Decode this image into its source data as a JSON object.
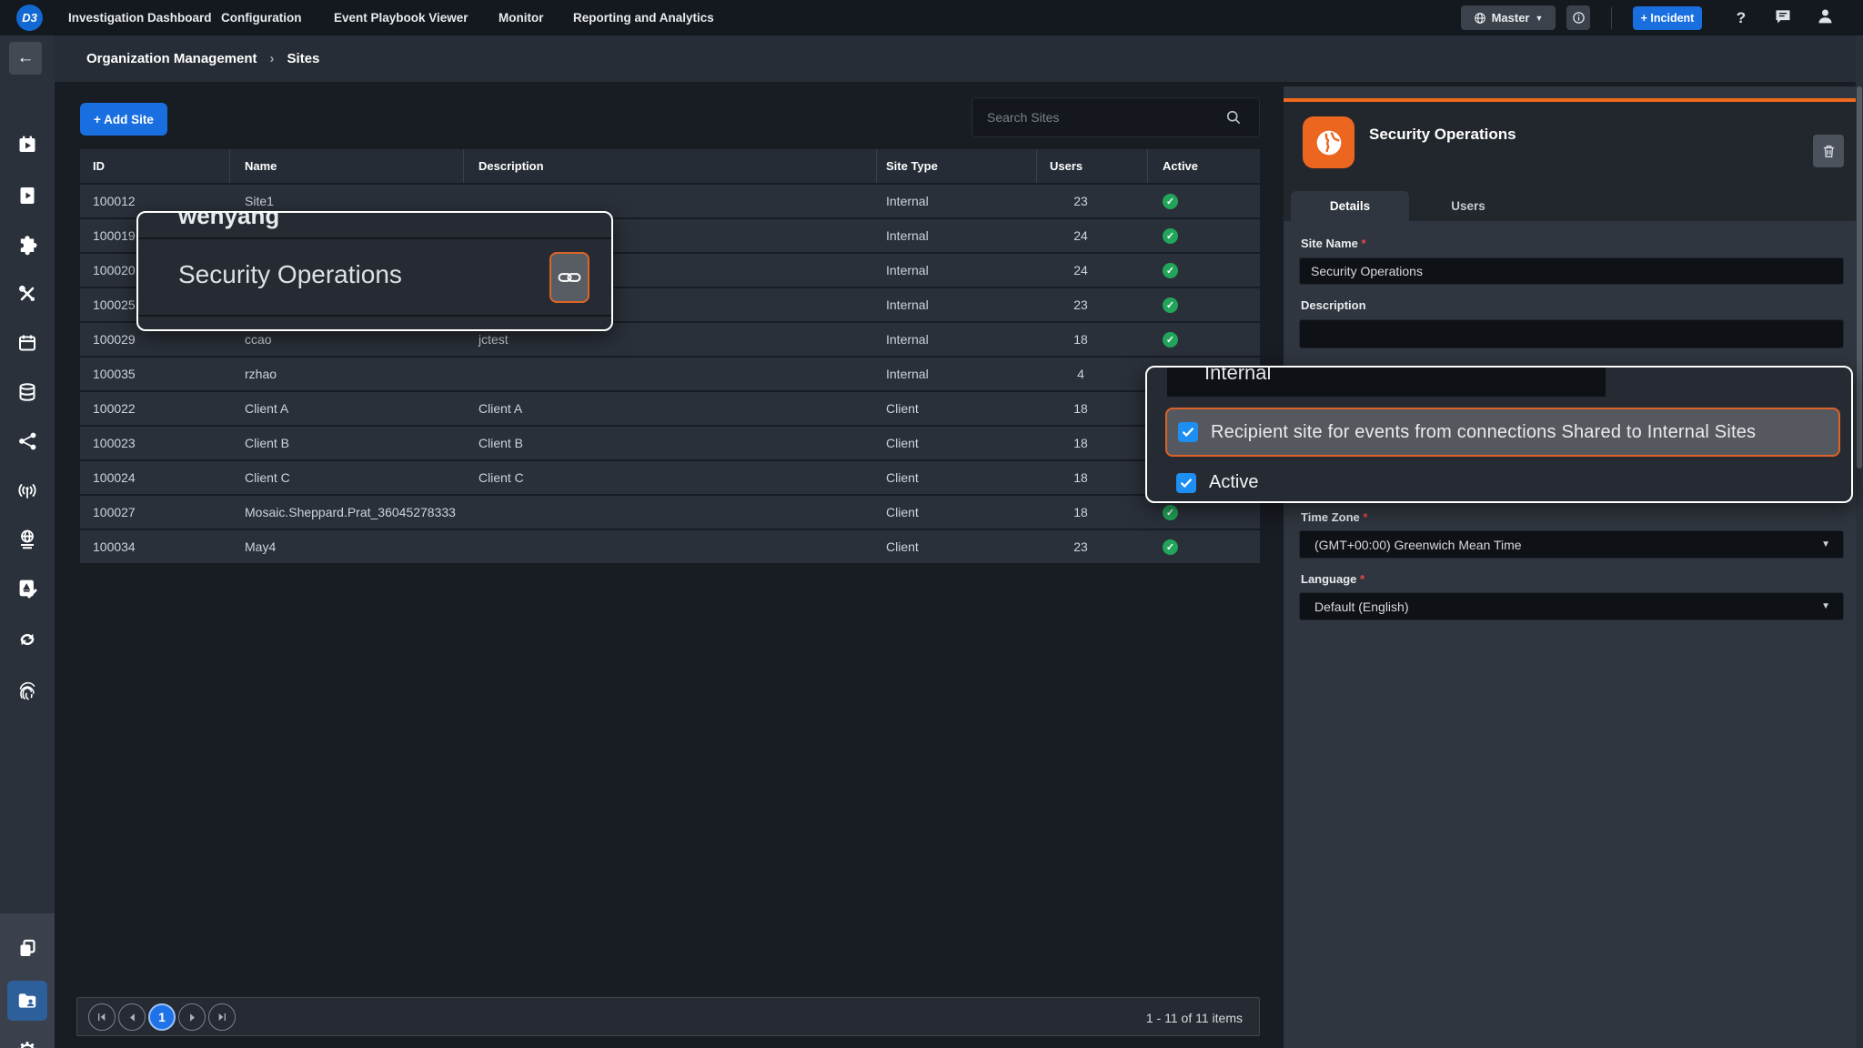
{
  "top_nav": {
    "logo": "D3",
    "items": [
      "Investigation Dashboard",
      "Configuration",
      "Event Playbook Viewer",
      "Monitor",
      "Reporting and Analytics"
    ],
    "master_label": "Master",
    "incident_button": "+ Incident",
    "help_label": "?"
  },
  "breadcrumb": {
    "parent": "Organization Management",
    "separator": "›",
    "current": "Sites"
  },
  "sidebar": {
    "icons": [
      "back",
      "investigation-calendar",
      "playbook-book",
      "integrations-puzzle",
      "utilities-tools",
      "schedule-calendar",
      "data-database",
      "connections-share",
      "monitor-antenna",
      "sites-globe",
      "report-editor",
      "sync",
      "identity-fingerprint",
      "copy-pages",
      "organization-folder",
      "settings-gear"
    ],
    "active_icon": "organization-folder"
  },
  "toolbar": {
    "add_site_label": "+ Add Site",
    "search_placeholder": "Search Sites"
  },
  "table": {
    "headers": [
      "ID",
      "Name",
      "Description",
      "Site Type",
      "Users",
      "Active"
    ],
    "rows": [
      {
        "id": "100012",
        "name": "Site1",
        "description": "",
        "site_type": "Internal",
        "users": "23",
        "active": true
      },
      {
        "id": "100019",
        "name": "",
        "description": "",
        "site_type": "Internal",
        "users": "24",
        "active": true
      },
      {
        "id": "100020",
        "name": "",
        "description": "",
        "site_type": "Internal",
        "users": "24",
        "active": true
      },
      {
        "id": "100025",
        "name": "",
        "description": "",
        "site_type": "Internal",
        "users": "23",
        "active": true
      },
      {
        "id": "100029",
        "name": "ccao",
        "description": "jctest",
        "site_type": "Internal",
        "users": "18",
        "active": true
      },
      {
        "id": "100035",
        "name": "rzhao",
        "description": "",
        "site_type": "Internal",
        "users": "4",
        "active": true
      },
      {
        "id": "100022",
        "name": "Client A",
        "description": "Client A",
        "site_type": "Client",
        "users": "18",
        "active": true
      },
      {
        "id": "100023",
        "name": "Client B",
        "description": "Client B",
        "site_type": "Client",
        "users": "18",
        "active": true
      },
      {
        "id": "100024",
        "name": "Client C",
        "description": "Client C",
        "site_type": "Client",
        "users": "18",
        "active": true
      },
      {
        "id": "100027",
        "name": "Mosaic.Sheppard.Prat_36045278333",
        "description": "",
        "site_type": "Client",
        "users": "18",
        "active": true
      },
      {
        "id": "100034",
        "name": "May4",
        "description": "",
        "site_type": "Client",
        "users": "23",
        "active": true
      }
    ]
  },
  "pagination": {
    "page": "1",
    "summary": "1 - 11 of 11 items"
  },
  "panel": {
    "title": "Security Operations",
    "tabs": [
      "Details",
      "Users"
    ],
    "required_marker": "*",
    "site_name_label": "Site Name",
    "site_name_value": "Security Operations",
    "description_label": "Description",
    "description_value": "",
    "time_zone_label": "Time Zone",
    "time_zone_value": "(GMT+00:00) Greenwich Mean Time",
    "language_label": "Language",
    "language_value": "Default (English)",
    "caret": "▼"
  },
  "overlays": {
    "left_popup": {
      "clipped_text": "wenyang",
      "main_text": "Security Operations"
    },
    "right_popup": {
      "clipped_text": "Internal",
      "highlight_label": "Recipient site for events from connections Shared to Internal Sites",
      "active_label": "Active"
    }
  },
  "colors": {
    "accent_blue": "#1a6fe0",
    "accent_orange": "#ed6620",
    "highlight_border": "#dc6426",
    "success_green": "#22a45b",
    "checkbox_blue": "#1e8ff2",
    "active_sidebar": "#2d5f9b"
  }
}
